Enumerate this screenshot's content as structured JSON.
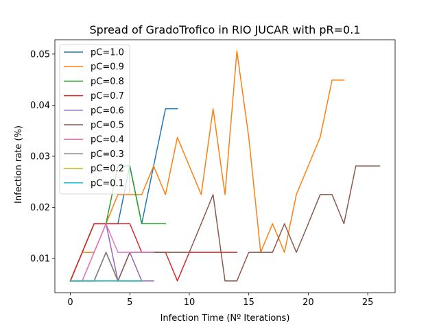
{
  "chart_data": {
    "type": "line",
    "title": "Spread of GradoTrofico in RIO JUCAR with pR=0.1",
    "xlabel": "Infection Time (Nº Iterations)",
    "ylabel": "Infection rate (%)",
    "xlim": [
      -1.3,
      27.3
    ],
    "ylim": [
      0.0033,
      0.0528
    ],
    "xticks": [
      0,
      5,
      10,
      15,
      20,
      25
    ],
    "yticks": [
      0.01,
      0.02,
      0.03,
      0.04,
      0.05
    ],
    "ytick_labels": [
      "0.01",
      "0.02",
      "0.03",
      "0.04",
      "0.05"
    ],
    "legend_position": "upper-left",
    "series": [
      {
        "name": "pC=1.0",
        "color": "#1f77b4",
        "x": [
          0,
          1,
          2,
          3,
          4,
          5,
          6,
          7,
          8,
          9
        ],
        "y": [
          0.0056,
          0.0112,
          0.0168,
          0.0168,
          0.0168,
          0.0281,
          0.0168,
          0.0281,
          0.0393,
          0.0393
        ]
      },
      {
        "name": "pC=0.9",
        "color": "#ff7f0e",
        "x": [
          0,
          1,
          2,
          3,
          4,
          5,
          6,
          7,
          8,
          9,
          10,
          11,
          12,
          13,
          14,
          15,
          16,
          17,
          18,
          19,
          20,
          21,
          22,
          23
        ],
        "y": [
          0.0056,
          0.0112,
          0.0112,
          0.0168,
          0.0225,
          0.0225,
          0.0225,
          0.0281,
          0.0225,
          0.0337,
          0.0281,
          0.0225,
          0.0393,
          0.0225,
          0.0506,
          0.0337,
          0.0112,
          0.0168,
          0.0112,
          0.0225,
          0.0281,
          0.0337,
          0.0449,
          0.0449
        ]
      },
      {
        "name": "pC=0.8",
        "color": "#2ca02c",
        "x": [
          0,
          1,
          2,
          3,
          4,
          5,
          6,
          7,
          8
        ],
        "y": [
          0.0056,
          0.0112,
          0.0168,
          0.0168,
          0.0281,
          0.0281,
          0.0168,
          0.0168,
          0.0168
        ]
      },
      {
        "name": "pC=0.7",
        "color": "#d62728",
        "x": [
          0,
          1,
          2,
          3,
          4,
          5,
          6,
          7,
          8,
          9,
          10,
          11,
          12,
          13,
          14
        ],
        "y": [
          0.0056,
          0.0112,
          0.0168,
          0.0168,
          0.0168,
          0.0168,
          0.0112,
          0.0112,
          0.0112,
          0.0056,
          0.0112,
          0.0112,
          0.0112,
          0.0112,
          0.0112
        ]
      },
      {
        "name": "pC=0.6",
        "color": "#9467bd",
        "x": [
          0,
          1,
          2,
          3,
          4,
          5,
          6,
          7
        ],
        "y": [
          0.0056,
          0.0056,
          0.0112,
          0.0168,
          0.0056,
          0.0112,
          0.0056,
          0.0056
        ]
      },
      {
        "name": "pC=0.5",
        "color": "#8c564b",
        "x": [
          0,
          1,
          2,
          3,
          4,
          5,
          6,
          7,
          8,
          9,
          10,
          11,
          12,
          13,
          14,
          15,
          16,
          17,
          18,
          19,
          20,
          21,
          22,
          23,
          24,
          25,
          26
        ],
        "y": [
          0.0056,
          0.0056,
          0.0056,
          0.0112,
          0.0056,
          0.0112,
          0.0112,
          0.0112,
          0.0112,
          0.0112,
          0.0112,
          0.0168,
          0.0225,
          0.0056,
          0.0056,
          0.0112,
          0.0112,
          0.0112,
          0.0168,
          0.0112,
          0.0168,
          0.0225,
          0.0225,
          0.0168,
          0.0281,
          0.0281,
          0.0281
        ]
      },
      {
        "name": "pC=0.4",
        "color": "#e377c2",
        "x": [
          0,
          1,
          2,
          3,
          4,
          5,
          6,
          7
        ],
        "y": [
          0.0056,
          0.0056,
          0.0112,
          0.0168,
          0.0112,
          0.0112,
          0.0112,
          0.0112
        ]
      },
      {
        "name": "pC=0.3",
        "color": "#7f7f7f",
        "x": [
          0,
          1,
          2,
          3,
          4,
          5,
          6
        ],
        "y": [
          0.0056,
          0.0056,
          0.0056,
          0.0112,
          0.0056,
          0.0056,
          0.0056
        ]
      },
      {
        "name": "pC=0.2",
        "color": "#bcbd22",
        "x": [
          0,
          1,
          2,
          3,
          4,
          5,
          6
        ],
        "y": [
          0.0056,
          0.0056,
          0.0056,
          0.0056,
          0.0056,
          0.0056,
          0.0056
        ]
      },
      {
        "name": "pC=0.1",
        "color": "#17becf",
        "x": [
          0,
          1,
          2,
          3,
          4,
          5,
          6
        ],
        "y": [
          0.0056,
          0.0056,
          0.0056,
          0.0056,
          0.0056,
          0.0056,
          0.0056
        ]
      }
    ]
  }
}
